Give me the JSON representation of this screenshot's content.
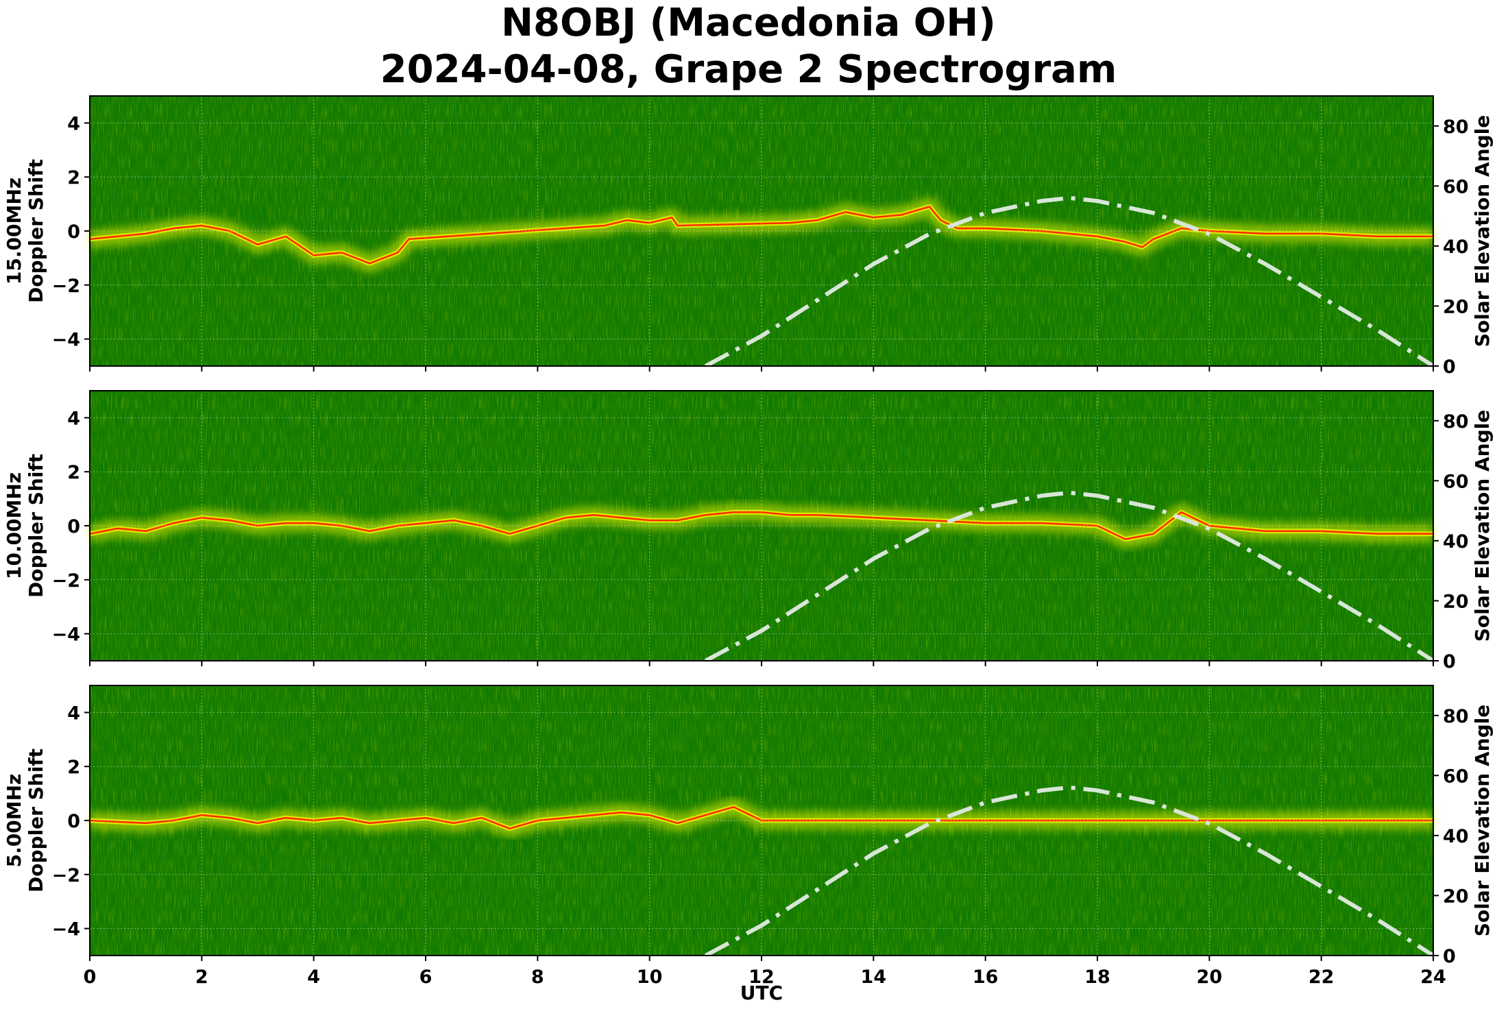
{
  "title_line1": "N8OBJ (Macedonia OH)",
  "title_line2": "2024-04-08, Grape 2 Spectrogram",
  "colors": {
    "background_green": "#117a00",
    "trace_yellow": "#e6f000",
    "trace_red": "#ff2a00",
    "solar_curve": "#d8e6d8"
  },
  "chart_data": [
    {
      "type": "heatmap",
      "panel": 1,
      "ylabel_line1": "15.00MHz",
      "ylabel_line2": "Doppler Shift",
      "y2label": "Solar Elevation Angle",
      "xlim": [
        0,
        24
      ],
      "ylim": [
        -5,
        5
      ],
      "y2lim": [
        0,
        90
      ],
      "x_ticks": [
        0,
        2,
        4,
        6,
        8,
        10,
        12,
        14,
        16,
        18,
        20,
        22,
        24
      ],
      "y_ticks": [
        -4,
        -2,
        0,
        2,
        4
      ],
      "y2_ticks": [
        0,
        20,
        40,
        60,
        80
      ],
      "grid": true,
      "doppler_trace": {
        "utc": [
          0,
          0.5,
          1,
          1.5,
          2,
          2.5,
          3,
          3.5,
          4,
          4.5,
          5,
          5.5,
          5.7,
          9.2,
          9.6,
          10,
          10.4,
          10.5,
          12.5,
          13,
          13.5,
          14,
          14.5,
          15,
          15.2,
          15.5,
          16,
          17,
          18,
          18.5,
          18.8,
          19,
          19.5,
          20,
          21,
          22,
          23,
          24
        ],
        "hz": [
          -0.3,
          -0.2,
          -0.1,
          0.1,
          0.2,
          0.0,
          -0.5,
          -0.2,
          -0.9,
          -0.8,
          -1.2,
          -0.8,
          -0.3,
          0.2,
          0.4,
          0.3,
          0.5,
          0.2,
          0.3,
          0.4,
          0.7,
          0.5,
          0.6,
          0.9,
          0.4,
          0.1,
          0.1,
          0.0,
          -0.2,
          -0.4,
          -0.6,
          -0.3,
          0.1,
          0.0,
          -0.1,
          -0.1,
          -0.2,
          -0.2
        ]
      },
      "solar_elevation": {
        "utc": [
          11,
          12,
          13,
          14,
          15,
          16,
          17,
          17.5,
          18,
          19,
          20,
          21,
          22,
          23,
          24
        ],
        "deg": [
          0,
          10,
          22,
          34,
          44,
          51,
          55,
          56,
          55,
          51,
          44,
          34,
          23,
          12,
          0
        ]
      }
    },
    {
      "type": "heatmap",
      "panel": 2,
      "ylabel_line1": "10.00MHz",
      "ylabel_line2": "Doppler Shift",
      "y2label": "Solar Elevation Angle",
      "xlim": [
        0,
        24
      ],
      "ylim": [
        -5,
        5
      ],
      "y2lim": [
        0,
        90
      ],
      "x_ticks": [
        0,
        2,
        4,
        6,
        8,
        10,
        12,
        14,
        16,
        18,
        20,
        22,
        24
      ],
      "y_ticks": [
        -4,
        -2,
        0,
        2,
        4
      ],
      "y2_ticks": [
        0,
        20,
        40,
        60,
        80
      ],
      "grid": true,
      "doppler_trace": {
        "utc": [
          0,
          0.5,
          1,
          1.5,
          2,
          2.5,
          3,
          3.5,
          4,
          4.5,
          5,
          5.5,
          6,
          6.5,
          7,
          7.5,
          8,
          8.5,
          9,
          9.5,
          10,
          10.5,
          11,
          11.5,
          12,
          12.5,
          13,
          14,
          15,
          16,
          17,
          18,
          18.5,
          19,
          19.5,
          20,
          21,
          22,
          23,
          24
        ],
        "hz": [
          -0.3,
          -0.1,
          -0.2,
          0.1,
          0.3,
          0.2,
          0.0,
          0.1,
          0.1,
          0.0,
          -0.2,
          0.0,
          0.1,
          0.2,
          0.0,
          -0.3,
          0.0,
          0.3,
          0.4,
          0.3,
          0.2,
          0.2,
          0.4,
          0.5,
          0.5,
          0.4,
          0.4,
          0.3,
          0.2,
          0.1,
          0.1,
          0.0,
          -0.5,
          -0.3,
          0.5,
          0.0,
          -0.2,
          -0.2,
          -0.3,
          -0.3
        ]
      },
      "solar_elevation": {
        "utc": [
          11,
          12,
          13,
          14,
          15,
          16,
          17,
          17.5,
          18,
          19,
          20,
          21,
          22,
          23,
          24
        ],
        "deg": [
          0,
          10,
          22,
          34,
          44,
          51,
          55,
          56,
          55,
          51,
          44,
          34,
          23,
          12,
          0
        ]
      }
    },
    {
      "type": "heatmap",
      "panel": 3,
      "ylabel_line1": "5.00MHz",
      "ylabel_line2": "Doppler Shift",
      "y2label": "Solar Elevation Angle",
      "xlabel": "UTC",
      "xlim": [
        0,
        24
      ],
      "ylim": [
        -5,
        5
      ],
      "y2lim": [
        0,
        90
      ],
      "x_ticks": [
        0,
        2,
        4,
        6,
        8,
        10,
        12,
        14,
        16,
        18,
        20,
        22,
        24
      ],
      "y_ticks": [
        -4,
        -2,
        0,
        2,
        4
      ],
      "y2_ticks": [
        0,
        20,
        40,
        60,
        80
      ],
      "grid": true,
      "doppler_trace": {
        "utc": [
          0,
          1,
          1.5,
          2,
          2.5,
          3,
          3.5,
          4,
          4.5,
          5,
          5.5,
          6,
          6.5,
          7,
          7.5,
          8,
          8.5,
          9,
          9.5,
          10,
          10.5,
          11,
          11.5,
          12,
          24
        ],
        "hz": [
          0.0,
          -0.1,
          0.0,
          0.2,
          0.1,
          -0.1,
          0.1,
          0.0,
          0.1,
          -0.1,
          0.0,
          0.1,
          -0.1,
          0.1,
          -0.3,
          0.0,
          0.1,
          0.2,
          0.3,
          0.2,
          -0.1,
          0.2,
          0.5,
          0.0,
          0.0
        ]
      },
      "solar_elevation": {
        "utc": [
          11,
          12,
          13,
          14,
          15,
          16,
          17,
          17.5,
          18,
          19,
          20,
          21,
          22,
          23,
          24
        ],
        "deg": [
          0,
          10,
          22,
          34,
          44,
          51,
          55,
          56,
          55,
          51,
          44,
          34,
          23,
          12,
          0
        ]
      }
    }
  ]
}
